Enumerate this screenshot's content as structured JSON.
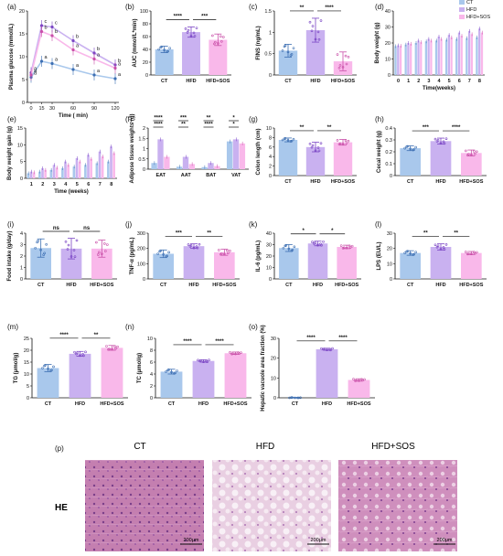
{
  "colors": {
    "CT": "#a9c8ec",
    "HFD": "#c9b1f0",
    "HFD+SOS": "#f9b8ea",
    "CT_dot": "#3d6fb3",
    "HFD_dot": "#7a45c4",
    "SOS_dot": "#c94fa8"
  },
  "legend": [
    "CT",
    "HFD",
    "HFD+SOS"
  ],
  "groups": [
    "CT",
    "HFD",
    "HFD+SOS"
  ],
  "chart_data": [
    {
      "panel": "(a)",
      "type": "line",
      "ylabel": "Plasma glucose (mmol/L)",
      "xlabel": "Time ( min)",
      "x": [
        0,
        15,
        30,
        60,
        90,
        120
      ],
      "ylim": [
        0,
        20
      ],
      "yticks": [
        0,
        5,
        10,
        15,
        20
      ],
      "series": [
        {
          "name": "CT",
          "values": [
            5.5,
            9.0,
            8.5,
            7.2,
            6.0,
            5.2
          ]
        },
        {
          "name": "HFD",
          "values": [
            6.5,
            16.8,
            16.5,
            13.5,
            10.8,
            8.2
          ]
        },
        {
          "name": "HFD+SOS",
          "values": [
            6.0,
            15.5,
            14.6,
            11.5,
            9.5,
            7.5
          ]
        }
      ],
      "letters": [
        [
          "a",
          "c",
          "c",
          "b",
          "b",
          "b"
        ],
        [
          "a",
          "b",
          "b",
          "a",
          "a",
          "a"
        ],
        [
          "a",
          "a",
          "a",
          "a",
          "a",
          "a"
        ]
      ]
    },
    {
      "panel": "(b)",
      "type": "bar",
      "ylabel": "AUC (mmol/L*min)",
      "categories": [
        "CT",
        "HFD",
        "HFD+SOS"
      ],
      "values": [
        40,
        67,
        55
      ],
      "errors": [
        5,
        8,
        9
      ],
      "ylim": [
        0,
        100
      ],
      "yticks": [
        0,
        20,
        40,
        60,
        80,
        100
      ],
      "sig": [
        [
          "CT",
          "HFD",
          "****"
        ],
        [
          "HFD",
          "HFD+SOS",
          "***"
        ]
      ]
    },
    {
      "panel": "(c)",
      "type": "bar",
      "ylabel": "FINS (ng/mL)",
      "categories": [
        "CT",
        "HFD",
        "HFD+SOS"
      ],
      "values": [
        0.57,
        1.05,
        0.32
      ],
      "errors": [
        0.15,
        0.28,
        0.22
      ],
      "ylim": [
        0,
        1.5
      ],
      "yticks": [
        0.0,
        0.5,
        1.0,
        1.5
      ],
      "sig": [
        [
          "CT",
          "HFD",
          "**"
        ],
        [
          "HFD",
          "HFD+SOS",
          "****"
        ]
      ]
    },
    {
      "panel": "(d)",
      "type": "bar",
      "ylabel": "Body weight (g)",
      "xlabel": "Time(weeks)",
      "categories": [
        "0",
        "1",
        "2",
        "3",
        "4",
        "5",
        "6",
        "7",
        "8"
      ],
      "ylim": [
        0,
        40
      ],
      "yticks": [
        0,
        10,
        20,
        30,
        40
      ],
      "series": [
        {
          "name": "CT",
          "values": [
            18,
            19,
            20,
            21,
            21.5,
            22,
            22.5,
            23,
            23.5
          ]
        },
        {
          "name": "HFD",
          "values": [
            18.5,
            20,
            21.5,
            22.5,
            24,
            25,
            26.5,
            27.5,
            29
          ]
        },
        {
          "name": "HFD+SOS",
          "values": [
            18.2,
            19.5,
            20.5,
            21.5,
            22.5,
            23.5,
            24.5,
            25.5,
            26.5
          ]
        }
      ]
    },
    {
      "panel": "(e)",
      "type": "bar",
      "ylabel": "Body weight gain (g)",
      "xlabel": "Time (weeks)",
      "categories": [
        "1",
        "2",
        "3",
        "4",
        "5",
        "6",
        "7",
        "8"
      ],
      "ylim": [
        0,
        15
      ],
      "yticks": [
        0,
        5,
        10,
        15
      ],
      "series": [
        {
          "name": "CT",
          "values": [
            1.5,
            2.0,
            2.5,
            3.0,
            3.5,
            4.0,
            4.5,
            5.0
          ]
        },
        {
          "name": "HFD",
          "values": [
            2.0,
            3.0,
            4.0,
            5.0,
            6.0,
            7.0,
            8.0,
            9.5
          ]
        },
        {
          "name": "HFD+SOS",
          "values": [
            1.8,
            2.5,
            3.2,
            4.0,
            5.0,
            5.8,
            6.5,
            7.5
          ]
        }
      ]
    },
    {
      "panel": "(f)",
      "type": "bar",
      "ylabel": "Adipose tissue weights (g)",
      "categories": [
        "EAT",
        "AAT",
        "BAT",
        "VAT"
      ],
      "ylim": [
        0,
        2.0
      ],
      "yticks": [
        0.0,
        0.5,
        1.0,
        1.5,
        2.0
      ],
      "series": [
        {
          "name": "CT",
          "values": [
            0.3,
            0.12,
            0.1,
            1.35
          ]
        },
        {
          "name": "HFD",
          "values": [
            1.45,
            0.6,
            0.3,
            1.45
          ]
        },
        {
          "name": "HFD+SOS",
          "values": [
            0.6,
            0.25,
            0.15,
            1.25
          ]
        }
      ],
      "sig_labels": [
        "****",
        "****",
        "***",
        "**",
        "**",
        "****",
        "*",
        "*"
      ]
    },
    {
      "panel": "(g)",
      "type": "bar",
      "ylabel": "Colon length (cm)",
      "categories": [
        "CT",
        "HFD",
        "HFD+SOS"
      ],
      "values": [
        7.5,
        6.0,
        7.0
      ],
      "errors": [
        0.4,
        1.0,
        0.6
      ],
      "ylim": [
        0,
        10
      ],
      "yticks": [
        0,
        2,
        4,
        6,
        8,
        10
      ],
      "sig": [
        [
          "CT",
          "HFD",
          "**"
        ],
        [
          "HFD",
          "HFD+SOS",
          "**"
        ]
      ]
    },
    {
      "panel": "(h)",
      "type": "bar",
      "ylabel": "Cecal weight (g)",
      "categories": [
        "CT",
        "HFD",
        "HFD+SOS"
      ],
      "values": [
        0.23,
        0.29,
        0.19
      ],
      "errors": [
        0.02,
        0.025,
        0.025
      ],
      "ylim": [
        0,
        0.4
      ],
      "yticks": [
        0.0,
        0.1,
        0.2,
        0.3,
        0.4
      ],
      "sig": [
        [
          "CT",
          "HFD",
          "***"
        ],
        [
          "HFD",
          "HFD+SOS",
          "****"
        ]
      ]
    },
    {
      "panel": "(i)",
      "type": "bar",
      "ylabel": "Food intake (g/day)",
      "categories": [
        "CT",
        "HFD",
        "HFD+SOS"
      ],
      "values": [
        2.7,
        2.65,
        2.65
      ],
      "errors": [
        0.8,
        0.9,
        0.75
      ],
      "ylim": [
        0,
        4
      ],
      "yticks": [
        0,
        1,
        2,
        3,
        4
      ],
      "sig": [
        [
          "CT",
          "HFD",
          "ns"
        ],
        [
          "HFD",
          "HFD+SOS",
          "ns"
        ]
      ]
    },
    {
      "panel": "(j)",
      "type": "bar",
      "ylabel": "TNF-α (pg/mL)",
      "categories": [
        "CT",
        "HFD",
        "HFD+SOS"
      ],
      "values": [
        165,
        215,
        175
      ],
      "errors": [
        25,
        15,
        20
      ],
      "ylim": [
        0,
        300
      ],
      "yticks": [
        0,
        100,
        200,
        300
      ],
      "sig": [
        [
          "CT",
          "HFD",
          "***"
        ],
        [
          "HFD",
          "HFD+SOS",
          "**"
        ]
      ]
    },
    {
      "panel": "(k)",
      "type": "bar",
      "ylabel": "IL-6 (pg/mL)",
      "categories": [
        "CT",
        "HFD",
        "HFD+SOS"
      ],
      "values": [
        27,
        31,
        28
      ],
      "errors": [
        3,
        2,
        1.5
      ],
      "ylim": [
        0,
        40
      ],
      "yticks": [
        0,
        10,
        20,
        30,
        40
      ],
      "sig": [
        [
          "CT",
          "HFD",
          "*"
        ],
        [
          "HFD",
          "HFD+SOS",
          "*"
        ]
      ]
    },
    {
      "panel": "(l)",
      "type": "bar",
      "ylabel": "LPS (EU/L)",
      "categories": [
        "CT",
        "HFD",
        "HFD+SOS"
      ],
      "values": [
        17,
        21,
        17
      ],
      "errors": [
        1.5,
        2.0,
        1.0
      ],
      "ylim": [
        0,
        30
      ],
      "yticks": [
        0,
        10,
        20,
        30
      ],
      "sig": [
        [
          "CT",
          "HFD",
          "**"
        ],
        [
          "HFD",
          "HFD+SOS",
          "**"
        ]
      ]
    },
    {
      "panel": "(m)",
      "type": "bar",
      "ylabel": "TG (μmol/g)",
      "categories": [
        "CT",
        "HFD",
        "HFD+SOS"
      ],
      "values": [
        12.5,
        18.5,
        21.0
      ],
      "errors": [
        1.5,
        1.0,
        1.0
      ],
      "ylim": [
        0,
        25
      ],
      "yticks": [
        0,
        5,
        10,
        15,
        20,
        25
      ],
      "sig": [
        [
          "CT",
          "HFD",
          "****"
        ],
        [
          "HFD",
          "HFD+SOS",
          "**"
        ]
      ]
    },
    {
      "panel": "(n)",
      "type": "bar",
      "ylabel": "TC (μmol/g)",
      "categories": [
        "CT",
        "HFD",
        "HFD+SOS"
      ],
      "values": [
        4.4,
        6.2,
        7.5
      ],
      "errors": [
        0.4,
        0.2,
        0.2
      ],
      "ylim": [
        0,
        10
      ],
      "yticks": [
        0,
        2,
        4,
        6,
        8,
        10
      ],
      "sig": [
        [
          "CT",
          "HFD",
          "****"
        ],
        [
          "HFD",
          "HFD+SOS",
          "****"
        ]
      ]
    },
    {
      "panel": "(o)",
      "type": "bar",
      "ylabel": "Hepatic vacuole area fraction (%)",
      "categories": [
        "CT",
        "HFD",
        "HFD+SOS"
      ],
      "values": [
        0,
        24.5,
        9.0
      ],
      "errors": [
        0.2,
        0.5,
        0.6
      ],
      "ylim": [
        0,
        30
      ],
      "yticks": [
        0,
        10,
        20,
        30
      ],
      "sig": [
        [
          "CT",
          "HFD",
          "****"
        ],
        [
          "HFD",
          "HFD+SOS",
          "****"
        ]
      ]
    }
  ],
  "histology": {
    "panel": "(p)",
    "row_label": "HE",
    "headers": [
      "CT",
      "HFD",
      "HFD+SOS"
    ],
    "scale_bar": "200μm"
  }
}
